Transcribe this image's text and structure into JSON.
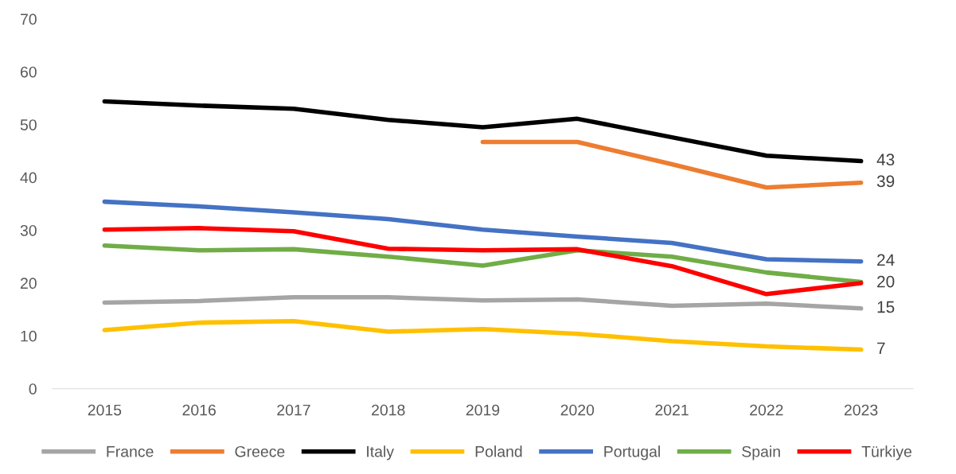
{
  "chart_data": {
    "type": "line",
    "categories": [
      "2015",
      "2016",
      "2017",
      "2018",
      "2019",
      "2020",
      "2021",
      "2022",
      "2023"
    ],
    "series": [
      {
        "name": "France",
        "color": "#a5a5a5",
        "values": [
          16.3,
          16.6,
          17.3,
          17.3,
          16.7,
          16.9,
          15.7,
          16.1,
          15.2
        ]
      },
      {
        "name": "Greece",
        "color": "#ed7d31",
        "values": [
          null,
          null,
          null,
          null,
          46.7,
          46.7,
          42.5,
          38.1,
          39.0
        ]
      },
      {
        "name": "Italy",
        "color": "#000000",
        "values": [
          54.4,
          53.6,
          53.0,
          50.9,
          49.5,
          51.1,
          47.6,
          44.1,
          43.1
        ]
      },
      {
        "name": "Poland",
        "color": "#ffc000",
        "values": [
          11.1,
          12.5,
          12.8,
          10.8,
          11.3,
          10.4,
          9.0,
          8.0,
          7.4
        ]
      },
      {
        "name": "Portugal",
        "color": "#4472c4",
        "values": [
          35.4,
          34.5,
          33.4,
          32.1,
          30.1,
          28.8,
          27.6,
          24.5,
          24.1
        ]
      },
      {
        "name": "Spain",
        "color": "#70ad47",
        "values": [
          27.1,
          26.2,
          26.4,
          25.0,
          23.3,
          26.2,
          25.0,
          22.0,
          20.2
        ]
      },
      {
        "name": "Türkiye",
        "color": "#ff0000",
        "values": [
          30.1,
          30.4,
          29.8,
          26.5,
          26.2,
          26.4,
          23.2,
          17.9,
          20.0
        ]
      }
    ],
    "annotations": [
      {
        "text": "43",
        "x": "2023",
        "y": 43.1
      },
      {
        "text": "39",
        "x": "2023",
        "y": 39.0
      },
      {
        "text": "24",
        "x": "2023",
        "y": 24.1
      },
      {
        "text": "20",
        "x": "2023",
        "y": 20.0
      },
      {
        "text": "15",
        "x": "2023",
        "y": 15.2
      },
      {
        "text": "7",
        "x": "2023",
        "y": 7.4
      }
    ],
    "ylim": [
      0,
      70
    ],
    "yticks": [
      0,
      10,
      20,
      30,
      40,
      50,
      60,
      70
    ],
    "grid": false,
    "legend": "bottom",
    "marker": "none",
    "line_style": "solid"
  }
}
